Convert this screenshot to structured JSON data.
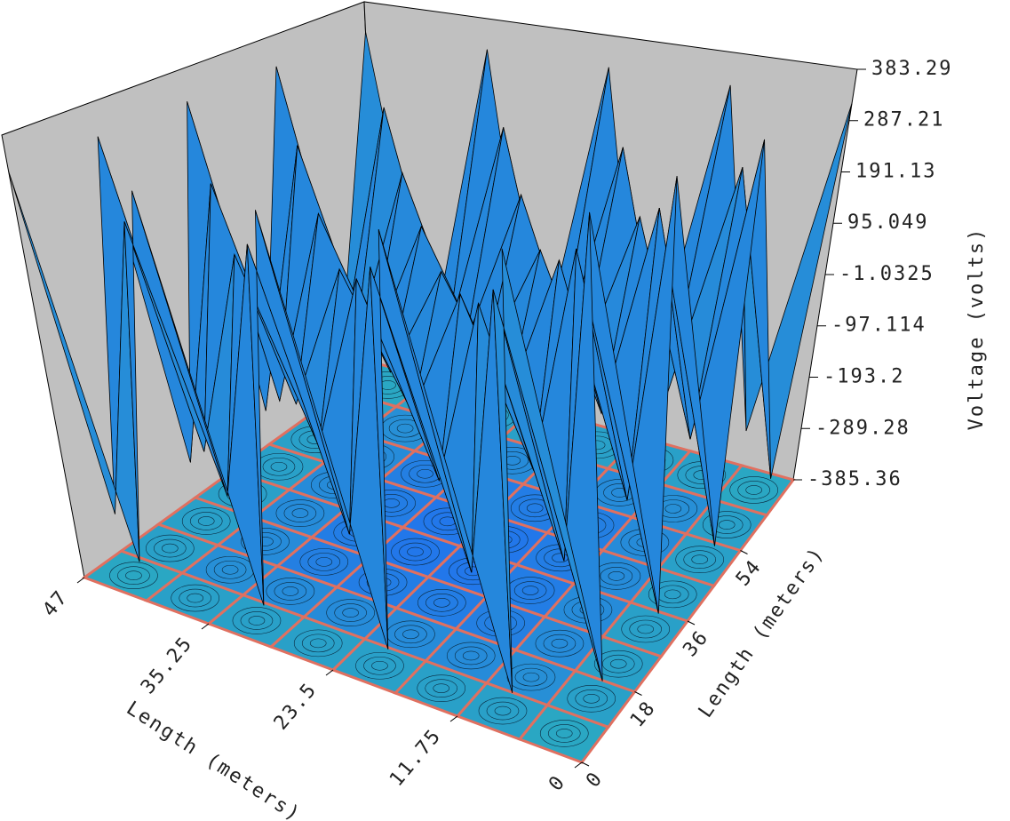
{
  "chart_data": {
    "type": "surface",
    "x_label": "Length (meters)",
    "y_label": "Length (meters)",
    "z_label": "Voltage (volts)",
    "xlim": [
      0,
      47
    ],
    "xticks": [
      0,
      11.75,
      23.5,
      35.25,
      47
    ],
    "ylim": [
      0,
      72
    ],
    "yticks": [
      0,
      18,
      36,
      54
    ],
    "zlim": [
      -385.36,
      383.29
    ],
    "zticks": [
      383.29,
      287.21,
      191.13,
      95.049,
      -1.0325,
      -97.114,
      -193.2,
      -289.28,
      -385.36
    ],
    "x": [
      0,
      5.875,
      11.75,
      17.625,
      23.5,
      29.375,
      35.25,
      41.125,
      47
    ],
    "y": [
      0,
      9,
      18,
      27,
      36,
      45,
      54,
      63,
      72
    ],
    "z": [
      [
        320,
        -320,
        320,
        -320,
        320,
        -320,
        320,
        -320,
        320
      ],
      [
        -320,
        220,
        -220,
        220,
        -220,
        220,
        -220,
        220,
        -320
      ],
      [
        320,
        -220,
        150,
        -150,
        150,
        -150,
        150,
        -220,
        320
      ],
      [
        -320,
        220,
        -150,
        110,
        -110,
        110,
        -150,
        220,
        -320
      ],
      [
        320,
        -220,
        150,
        -110,
        90,
        -110,
        150,
        -220,
        320
      ],
      [
        -320,
        220,
        -150,
        110,
        -110,
        110,
        -150,
        220,
        -320
      ],
      [
        320,
        -220,
        150,
        -150,
        150,
        -150,
        150,
        -220,
        320
      ],
      [
        -320,
        220,
        -220,
        220,
        -220,
        220,
        -220,
        220,
        -320
      ],
      [
        320,
        -320,
        320,
        -320,
        320,
        -320,
        320,
        -320,
        320
      ]
    ],
    "low_color": "#30c8a8",
    "high_color": "#1e5cff",
    "wall_color": "#c0c0c0",
    "floor_line_color": "#e07060"
  }
}
